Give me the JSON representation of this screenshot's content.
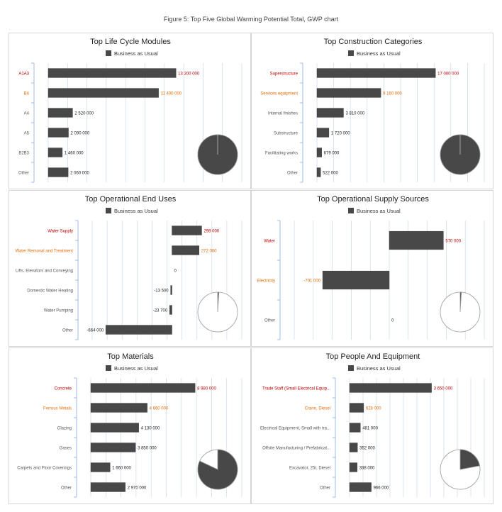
{
  "figure_title": "Figure 5: Top Five Global Warming Potential Total, GWP chart",
  "legend_label": "Business as Usual",
  "colors": {
    "bar": "#484848",
    "first": "#c00000",
    "second": "#e36c09",
    "other": "#555555",
    "grid": "#c9d8e8",
    "axis": "#9dbbe3"
  },
  "chart_data": [
    {
      "type": "bar",
      "title": "Top Life Cycle Modules",
      "categories": [
        "A1A3",
        "B4",
        "A4",
        "A5",
        "B2B3",
        "Other"
      ],
      "series": [
        {
          "name": "Business as Usual",
          "values": [
            13200000,
            11400000,
            2520000,
            2090000,
            1460000,
            2060000
          ]
        }
      ],
      "value_labels": [
        "13 200 000",
        "11 400 000",
        "2 520 000",
        "2 090 000",
        "1 460 000",
        "2 060 000"
      ],
      "xlim": [
        0,
        20000000
      ],
      "pie_fraction": 1.0
    },
    {
      "type": "bar",
      "title": "Top Construction Categories",
      "categories": [
        "Superstructure",
        "Services equipment",
        "Internal finishes",
        "Substructure",
        "Facilitating works",
        "Other"
      ],
      "series": [
        {
          "name": "Business as Usual",
          "values": [
            17000000,
            9160000,
            3810000,
            1720000,
            679000,
            522000
          ]
        }
      ],
      "value_labels": [
        "17 000 000",
        "9 160 000",
        "3 810 000",
        "1 720 000",
        "679 000",
        "522 000"
      ],
      "xlim": [
        0,
        24000000
      ],
      "pie_fraction": 1.0
    },
    {
      "type": "bar",
      "title": "Top Operational End Uses",
      "categories": [
        "Water Supply",
        "Water Removal and Treatment",
        "Lifts, Elevators and Conveying",
        "Domestic Water Heating",
        "Water Pumping",
        "Other"
      ],
      "series": [
        {
          "name": "Business as Usual",
          "values": [
            298000,
            272000,
            0,
            -13500,
            -23700,
            -664000
          ]
        }
      ],
      "value_labels": [
        "298 000",
        "272 000",
        "0",
        "-13 500",
        "-23 700",
        "-664 000"
      ],
      "xlim": [
        -800000,
        700000
      ],
      "pie_fraction": 0.01
    },
    {
      "type": "bar",
      "title": "Top Operational Supply Sources",
      "categories": [
        "Water",
        "Electricity",
        "Other"
      ],
      "series": [
        {
          "name": "Business as Usual",
          "values": [
            570000,
            -701000,
            0
          ]
        }
      ],
      "value_labels": [
        "570 000",
        "-701 000",
        "0"
      ],
      "xlim": [
        -1000000,
        1000000
      ],
      "pie_fraction": 0.01
    },
    {
      "type": "bar",
      "title": "Top Materials",
      "categories": [
        "Concrete",
        "Ferrous Metals",
        "Glazing",
        "Gases",
        "Carpets and Floor Coverings",
        "Other"
      ],
      "series": [
        {
          "name": "Business as Usual",
          "values": [
            8980000,
            4860000,
            4130000,
            3850000,
            1660000,
            2970000
          ]
        }
      ],
      "value_labels": [
        "8 980 000",
        "4 860 000",
        "4 130 000",
        "3 850 000",
        "1 660 000",
        "2 970 000"
      ],
      "xlim": [
        0,
        13000000
      ],
      "pie_fraction": 0.82
    },
    {
      "type": "bar",
      "title": "Top People And Equipment",
      "categories": [
        "Trade Staff (Small Electrical Equip...",
        "Crane, Diesel",
        "Electrical Equipment, Small with tra...",
        "Offsite Manufacturing / Prefabricat...",
        "Excavator, 25t, Diesel",
        "Other"
      ],
      "series": [
        {
          "name": "Business as Usual",
          "values": [
            3650000,
            628000,
            481000,
            352000,
            338000,
            966000
          ]
        }
      ],
      "value_labels": [
        "3 650 000",
        "628 000",
        "481 000",
        "352 000",
        "338 000",
        "966 000"
      ],
      "xlim": [
        0,
        6000000
      ],
      "pie_fraction": 0.22
    }
  ]
}
